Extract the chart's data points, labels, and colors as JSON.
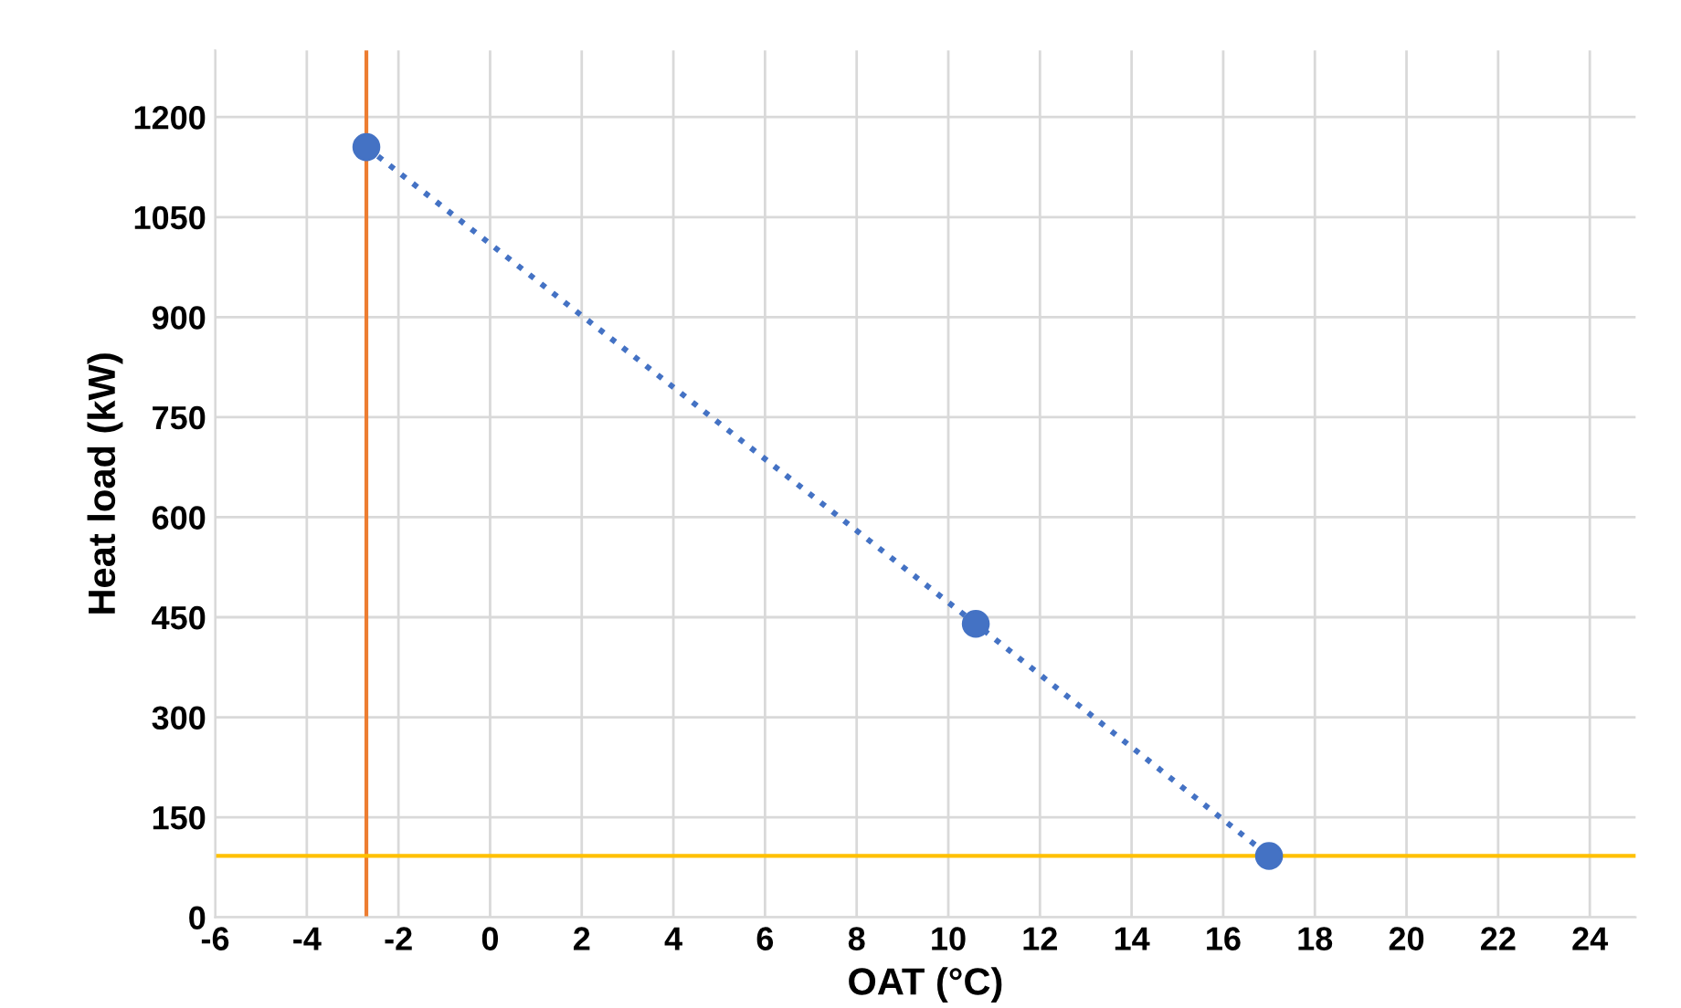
{
  "chart_data": {
    "type": "line",
    "xlabel": "OAT (°C)",
    "ylabel": "Heat load (kW)",
    "x": [
      -2.7,
      10.6,
      17.0
    ],
    "series": [
      {
        "color": "#4472c4",
        "values": [
          1155,
          440,
          92
        ]
      }
    ],
    "marker": "circle",
    "line_style": "dotted",
    "xlim": [
      -6,
      25
    ],
    "xticks": [
      -6,
      -4,
      -2,
      0,
      2,
      4,
      6,
      8,
      10,
      12,
      14,
      16,
      18,
      20,
      22,
      24
    ],
    "ylim": [
      0,
      1300
    ],
    "yticks": [
      0,
      150,
      300,
      450,
      600,
      750,
      900,
      1050,
      1200
    ],
    "grid": true,
    "ref_lines": [
      {
        "axis": "x",
        "value": -2.7,
        "color": "#ed7d31"
      },
      {
        "axis": "y",
        "value": 92,
        "color": "#ffc000"
      }
    ]
  }
}
